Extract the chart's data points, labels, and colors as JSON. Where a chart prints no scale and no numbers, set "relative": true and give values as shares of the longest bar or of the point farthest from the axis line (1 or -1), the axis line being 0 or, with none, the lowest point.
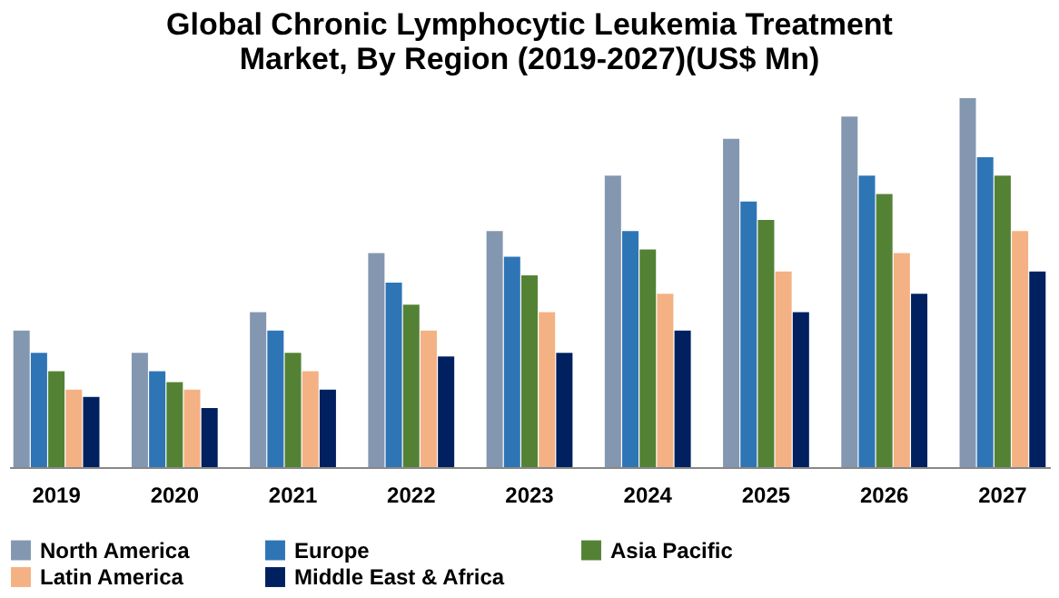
{
  "chart_data": {
    "type": "bar",
    "title": "Global Chronic Lymphocytic Leukemia Treatment Market, By Region (2019-2027)(US$ Mn)",
    "relative": true,
    "legend": "bottom",
    "grid": false,
    "categories": [
      "2019",
      "2020",
      "2021",
      "2022",
      "2023",
      "2024",
      "2025",
      "2026",
      "2027"
    ],
    "series": [
      {
        "name": "North America",
        "color": "#8497b0",
        "values": [
          0.37,
          0.31,
          0.42,
          0.58,
          0.64,
          0.79,
          0.89,
          0.95,
          1
        ]
      },
      {
        "name": "Europe",
        "color": "#2e75b6",
        "values": [
          0.31,
          0.26,
          0.37,
          0.5,
          0.57,
          0.64,
          0.72,
          0.79,
          0.84
        ]
      },
      {
        "name": "Asia Pacific",
        "color": "#548235",
        "values": [
          0.26,
          0.23,
          0.31,
          0.44,
          0.52,
          0.59,
          0.67,
          0.74,
          0.79
        ]
      },
      {
        "name": "Latin America",
        "color": "#f4b183",
        "values": [
          0.21,
          0.21,
          0.26,
          0.37,
          0.42,
          0.47,
          0.53,
          0.58,
          0.64
        ]
      },
      {
        "name": "Middle East & Africa",
        "color": "#002060",
        "values": [
          0.19,
          0.16,
          0.21,
          0.3,
          0.31,
          0.37,
          0.42,
          0.47,
          0.53
        ]
      }
    ]
  }
}
